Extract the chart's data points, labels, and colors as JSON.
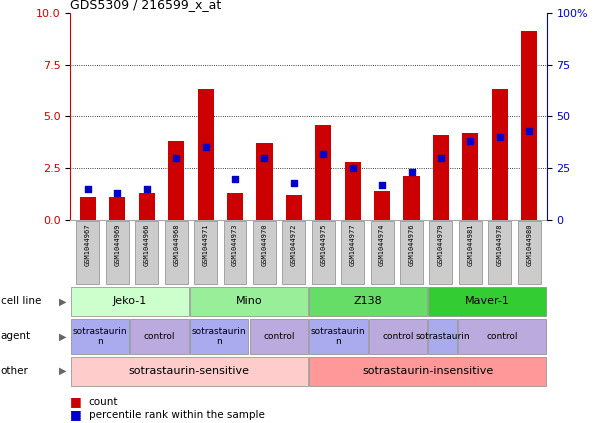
{
  "title": "GDS5309 / 216599_x_at",
  "samples": [
    "GSM1044967",
    "GSM1044969",
    "GSM1044966",
    "GSM1044968",
    "GSM1044971",
    "GSM1044973",
    "GSM1044970",
    "GSM1044972",
    "GSM1044975",
    "GSM1044977",
    "GSM1044974",
    "GSM1044976",
    "GSM1044979",
    "GSM1044981",
    "GSM1044978",
    "GSM1044980"
  ],
  "counts": [
    1.1,
    1.1,
    1.3,
    3.8,
    6.3,
    1.3,
    3.7,
    1.2,
    4.6,
    2.8,
    1.4,
    2.1,
    4.1,
    4.2,
    6.3,
    9.1
  ],
  "percentiles": [
    15,
    13,
    15,
    30,
    35,
    20,
    30,
    18,
    32,
    25,
    17,
    23,
    30,
    38,
    40,
    43
  ],
  "ylim_left": [
    0,
    10
  ],
  "ylim_right": [
    0,
    100
  ],
  "yticks_left": [
    0,
    2.5,
    5.0,
    7.5,
    10.0
  ],
  "yticks_right": [
    0,
    25,
    50,
    75,
    100
  ],
  "bar_color": "#cc0000",
  "dot_color": "#0000cc",
  "grid_color": "#000000",
  "cell_lines": [
    {
      "label": "Jeko-1",
      "start": 0,
      "end": 4,
      "color": "#ccffcc"
    },
    {
      "label": "Mino",
      "start": 4,
      "end": 8,
      "color": "#99ee99"
    },
    {
      "label": "Z138",
      "start": 8,
      "end": 12,
      "color": "#66dd66"
    },
    {
      "label": "Maver-1",
      "start": 12,
      "end": 16,
      "color": "#33cc33"
    }
  ],
  "agents": [
    {
      "label": "sotrastaurin\nn",
      "start": 0,
      "end": 2,
      "color": "#aaaaee"
    },
    {
      "label": "control",
      "start": 2,
      "end": 4,
      "color": "#bbaadd"
    },
    {
      "label": "sotrastaurin\nn",
      "start": 4,
      "end": 6,
      "color": "#aaaaee"
    },
    {
      "label": "control",
      "start": 6,
      "end": 8,
      "color": "#bbaadd"
    },
    {
      "label": "sotrastaurin\nn",
      "start": 8,
      "end": 10,
      "color": "#aaaaee"
    },
    {
      "label": "control",
      "start": 10,
      "end": 12,
      "color": "#bbaadd"
    },
    {
      "label": "sotrastaurin",
      "start": 12,
      "end": 13,
      "color": "#aaaaee"
    },
    {
      "label": "control",
      "start": 13,
      "end": 16,
      "color": "#bbaadd"
    }
  ],
  "others": [
    {
      "label": "sotrastaurin-sensitive",
      "start": 0,
      "end": 8,
      "color": "#ffcccc"
    },
    {
      "label": "sotrastaurin-insensitive",
      "start": 8,
      "end": 16,
      "color": "#ff9999"
    }
  ],
  "row_labels": [
    "cell line",
    "agent",
    "other"
  ],
  "legend": [
    "count",
    "percentile rank within the sample"
  ],
  "bg_color": "#ffffff",
  "plot_bg": "#ffffff",
  "axis_color_left": "#cc0000",
  "axis_color_right": "#0000cc",
  "tick_bg_color": "#cccccc",
  "spine_color": "#aaaaaa"
}
